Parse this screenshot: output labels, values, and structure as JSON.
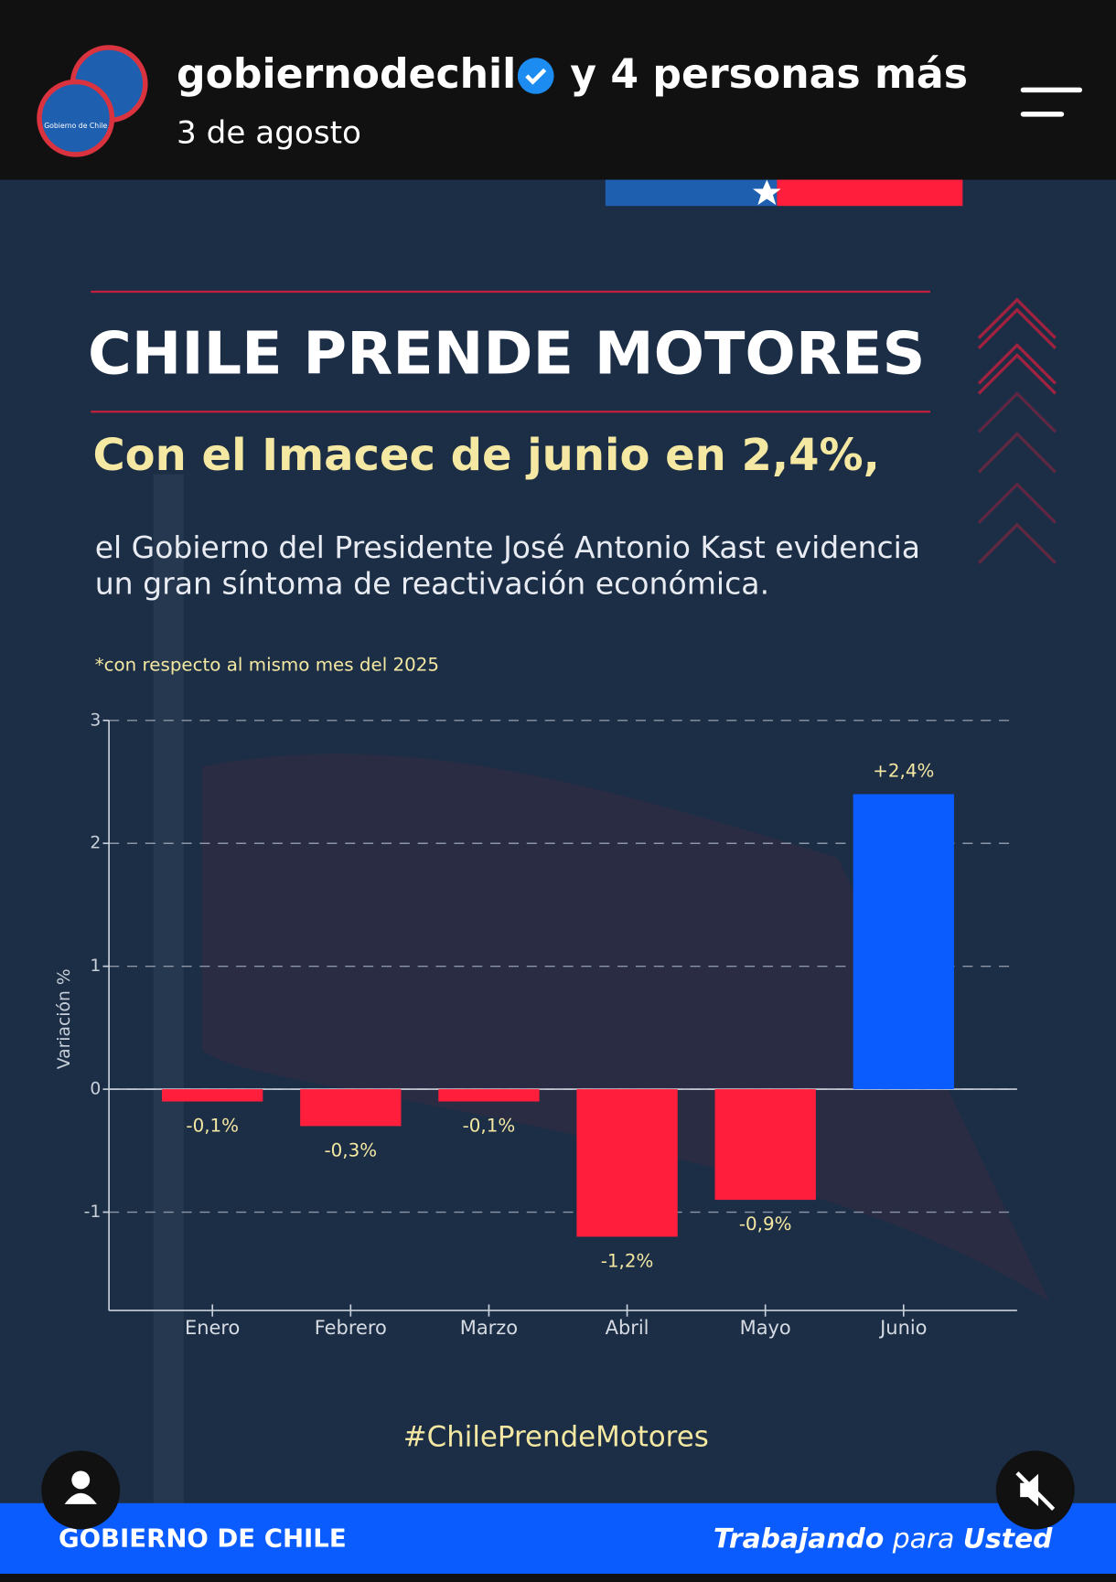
{
  "header": {
    "account": "gobiernodechile",
    "others": "y 4 personas más",
    "date": "3 de agosto",
    "logo_text": "Gobierno de Chile"
  },
  "post": {
    "title": "CHILE PRENDE MOTORES",
    "subtitle": "Con el Imacec de junio en 2,4%,",
    "body": [
      "el Gobierno del Presidente José Antonio Kast evidencia",
      "un gran síntoma de reactivación económica."
    ],
    "note": "*con respecto al mismo mes del 2025",
    "hashtag": "#ChilePrendeMotores",
    "footer_brand": "GOBIERNO DE CHILE",
    "footer_slogan": [
      "Trabajando",
      "para",
      "Usted"
    ]
  },
  "chart_data": {
    "type": "bar",
    "ylabel": "Variación %",
    "categories": [
      "Enero",
      "Febrero",
      "Marzo",
      "Abril",
      "Mayo",
      "Junio"
    ],
    "values": [
      -0.1,
      -0.3,
      -0.1,
      -1.2,
      -0.9,
      2.4
    ],
    "value_labels": [
      "-0,1%",
      "-0,3%",
      "-0,1%",
      "-1,2%",
      "-0,9%",
      "+2,4%"
    ],
    "positive_color": "#0a5cff",
    "negative_color": "#ff1f3d",
    "ylim": [
      -1.8,
      3
    ],
    "yticks": [
      -1,
      0,
      1,
      2,
      3
    ],
    "grid": true
  }
}
